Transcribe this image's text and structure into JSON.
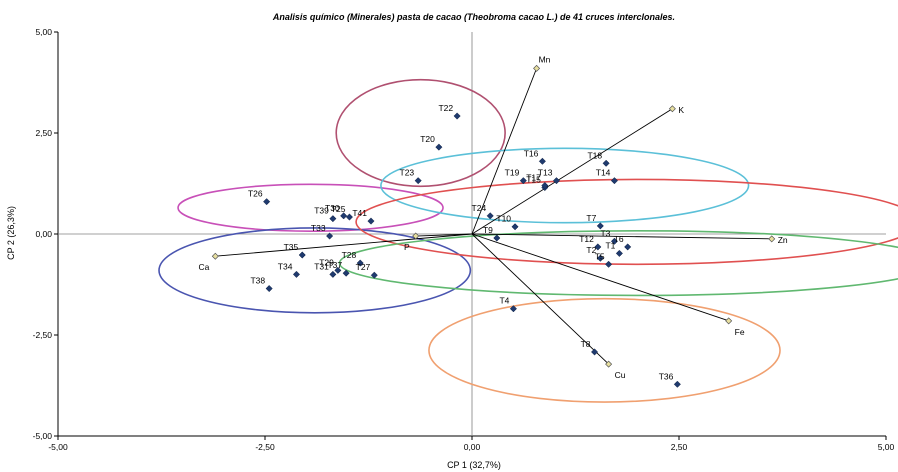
{
  "chart_data": {
    "type": "scatter",
    "title": "Analisis químico (Minerales) pasta de cacao (Theobroma cacao L.) de 41 cruces interclonales.",
    "xlabel": "CP 1 (32,7%)",
    "ylabel": "CP 2 (26,3%)",
    "xlim": [
      -5,
      5
    ],
    "ylim": [
      -5,
      5
    ],
    "x_ticks": [
      "-5,00",
      "-2,50",
      "0,00",
      "2,50",
      "5,00"
    ],
    "y_ticks": [
      "-5,00",
      "-2,50",
      "0,00",
      "2,50",
      "5,00"
    ],
    "grid": false,
    "zero_lines": true,
    "colors": {
      "point": "#1f3a6e",
      "variable_point": "#e8e0a0",
      "vector": "#000000",
      "axis": "#808080"
    },
    "series": [
      {
        "kind": "observations",
        "points": [
          {
            "label": "T1",
            "x": 1.78,
            "y": -0.48
          },
          {
            "label": "T2",
            "x": 1.55,
            "y": -0.6
          },
          {
            "label": "T3",
            "x": 1.72,
            "y": -0.18
          },
          {
            "label": "T4",
            "x": 0.5,
            "y": -1.85
          },
          {
            "label": "T5",
            "x": 1.65,
            "y": -0.75
          },
          {
            "label": "T6",
            "x": 1.88,
            "y": -0.32
          },
          {
            "label": "T7",
            "x": 1.55,
            "y": 0.2
          },
          {
            "label": "T8",
            "x": 1.48,
            "y": -2.92
          },
          {
            "label": "T9",
            "x": 0.3,
            "y": -0.1
          },
          {
            "label": "T10",
            "x": 0.52,
            "y": 0.18
          },
          {
            "label": "T12",
            "x": 1.52,
            "y": -0.32
          },
          {
            "label": "T13",
            "x": 1.02,
            "y": 1.32
          },
          {
            "label": "T14",
            "x": 1.72,
            "y": 1.32
          },
          {
            "label": "T15",
            "x": 0.88,
            "y": 1.15
          },
          {
            "label": "T16",
            "x": 0.85,
            "y": 1.8
          },
          {
            "label": "T17",
            "x": 0.88,
            "y": 1.2
          },
          {
            "label": "T18",
            "x": 1.62,
            "y": 1.75
          },
          {
            "label": "T19",
            "x": 0.62,
            "y": 1.32
          },
          {
            "label": "T20",
            "x": -0.4,
            "y": 2.15
          },
          {
            "label": "T22",
            "x": -0.18,
            "y": 2.92
          },
          {
            "label": "T23",
            "x": -0.65,
            "y": 1.32
          },
          {
            "label": "T24",
            "x": 0.22,
            "y": 0.45
          },
          {
            "label": "T25",
            "x": -1.48,
            "y": 0.42
          },
          {
            "label": "T26",
            "x": -2.48,
            "y": 0.8
          },
          {
            "label": "T27",
            "x": -1.18,
            "y": -1.02
          },
          {
            "label": "T28",
            "x": -1.35,
            "y": -0.72
          },
          {
            "label": "T29",
            "x": -1.62,
            "y": -0.9
          },
          {
            "label": "T30",
            "x": -1.55,
            "y": 0.45
          },
          {
            "label": "T31",
            "x": -1.68,
            "y": -1.0
          },
          {
            "label": "T33",
            "x": -1.72,
            "y": -0.05
          },
          {
            "label": "T34",
            "x": -2.12,
            "y": -1.0
          },
          {
            "label": "T35",
            "x": -2.05,
            "y": -0.52
          },
          {
            "label": "T36",
            "x": 2.48,
            "y": -3.72
          },
          {
            "label": "T37",
            "x": -1.52,
            "y": -0.97
          },
          {
            "label": "T38",
            "x": -2.45,
            "y": -1.35
          },
          {
            "label": "T39",
            "x": -1.68,
            "y": 0.38
          },
          {
            "label": "T41",
            "x": -1.22,
            "y": 0.32
          }
        ]
      },
      {
        "kind": "variables",
        "points": [
          {
            "label": "Mn",
            "x": 0.78,
            "y": 4.1
          },
          {
            "label": "K",
            "x": 2.42,
            "y": 3.1
          },
          {
            "label": "Zn",
            "x": 3.62,
            "y": -0.12
          },
          {
            "label": "Fe",
            "x": 3.1,
            "y": -2.15
          },
          {
            "label": "Cu",
            "x": 1.65,
            "y": -3.22
          },
          {
            "label": "P",
            "x": -0.68,
            "y": -0.05
          },
          {
            "label": "Ca",
            "x": -3.1,
            "y": -0.55
          }
        ]
      }
    ],
    "ellipses": [
      {
        "color": "#b05070",
        "cx": -0.62,
        "cy": 2.5,
        "rx": 1.02,
        "ry": 1.32
      },
      {
        "color": "#c850b8",
        "cx": -1.95,
        "cy": 0.65,
        "rx": 1.6,
        "ry": 0.58
      },
      {
        "color": "#4a55b0",
        "cx": -1.9,
        "cy": -0.9,
        "rx": 1.88,
        "ry": 1.05
      },
      {
        "color": "#5bc0d8",
        "cx": 1.12,
        "cy": 1.2,
        "rx": 2.22,
        "ry": 0.92
      },
      {
        "color": "#e05050",
        "cx": 2.0,
        "cy": 0.3,
        "rx": 3.4,
        "ry": 1.05
      },
      {
        "color": "#60b870",
        "cx": 2.0,
        "cy": -0.72,
        "rx": 3.6,
        "ry": 0.8
      },
      {
        "color": "#f0a070",
        "cx": 1.6,
        "cy": -2.88,
        "rx": 2.12,
        "ry": 1.28
      }
    ]
  }
}
